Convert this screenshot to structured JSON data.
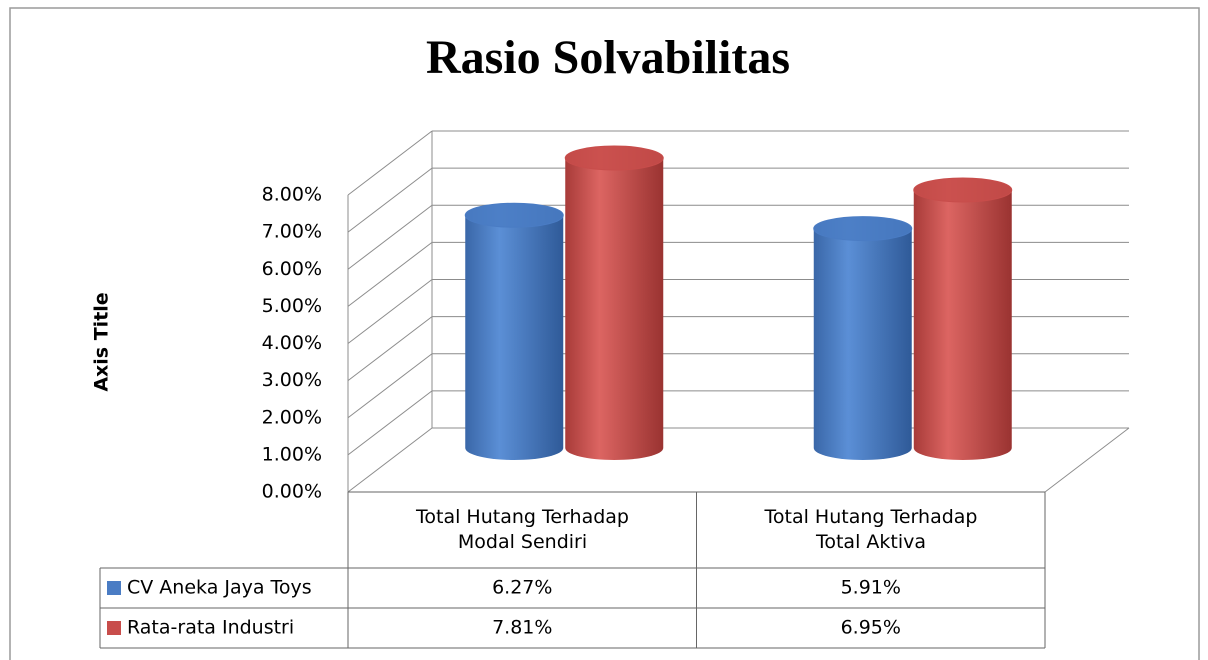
{
  "chart_data": {
    "type": "bar3d",
    "title": "Rasio Solvabilitas",
    "y_axis_label": "Axis Title",
    "categories": [
      "Total Hutang Terhadap Modal Sendiri",
      "Total Hutang Terhadap Total Aktiva"
    ],
    "series": [
      {
        "name": "CV Aneka Jaya Toys",
        "color": "#4a7cc4",
        "values": [
          6.27,
          5.91
        ],
        "value_labels": [
          "6.27%",
          "5.91%"
        ]
      },
      {
        "name": "Rata-rata Industri",
        "color": "#c84d4b",
        "values": [
          7.81,
          6.95
        ],
        "value_labels": [
          "7.81%",
          "6.95%"
        ]
      }
    ],
    "ylim": [
      0,
      8
    ],
    "yticks": [
      {
        "value": 0,
        "label": "0.00%"
      },
      {
        "value": 1,
        "label": "1.00%"
      },
      {
        "value": 2,
        "label": "2.00%"
      },
      {
        "value": 3,
        "label": "3.00%"
      },
      {
        "value": 4,
        "label": "4.00%"
      },
      {
        "value": 5,
        "label": "5.00%"
      },
      {
        "value": 6,
        "label": "6.00%"
      },
      {
        "value": 7,
        "label": "7.00%"
      },
      {
        "value": 8,
        "label": "8.00%"
      }
    ],
    "grid": true,
    "data_table": true
  }
}
